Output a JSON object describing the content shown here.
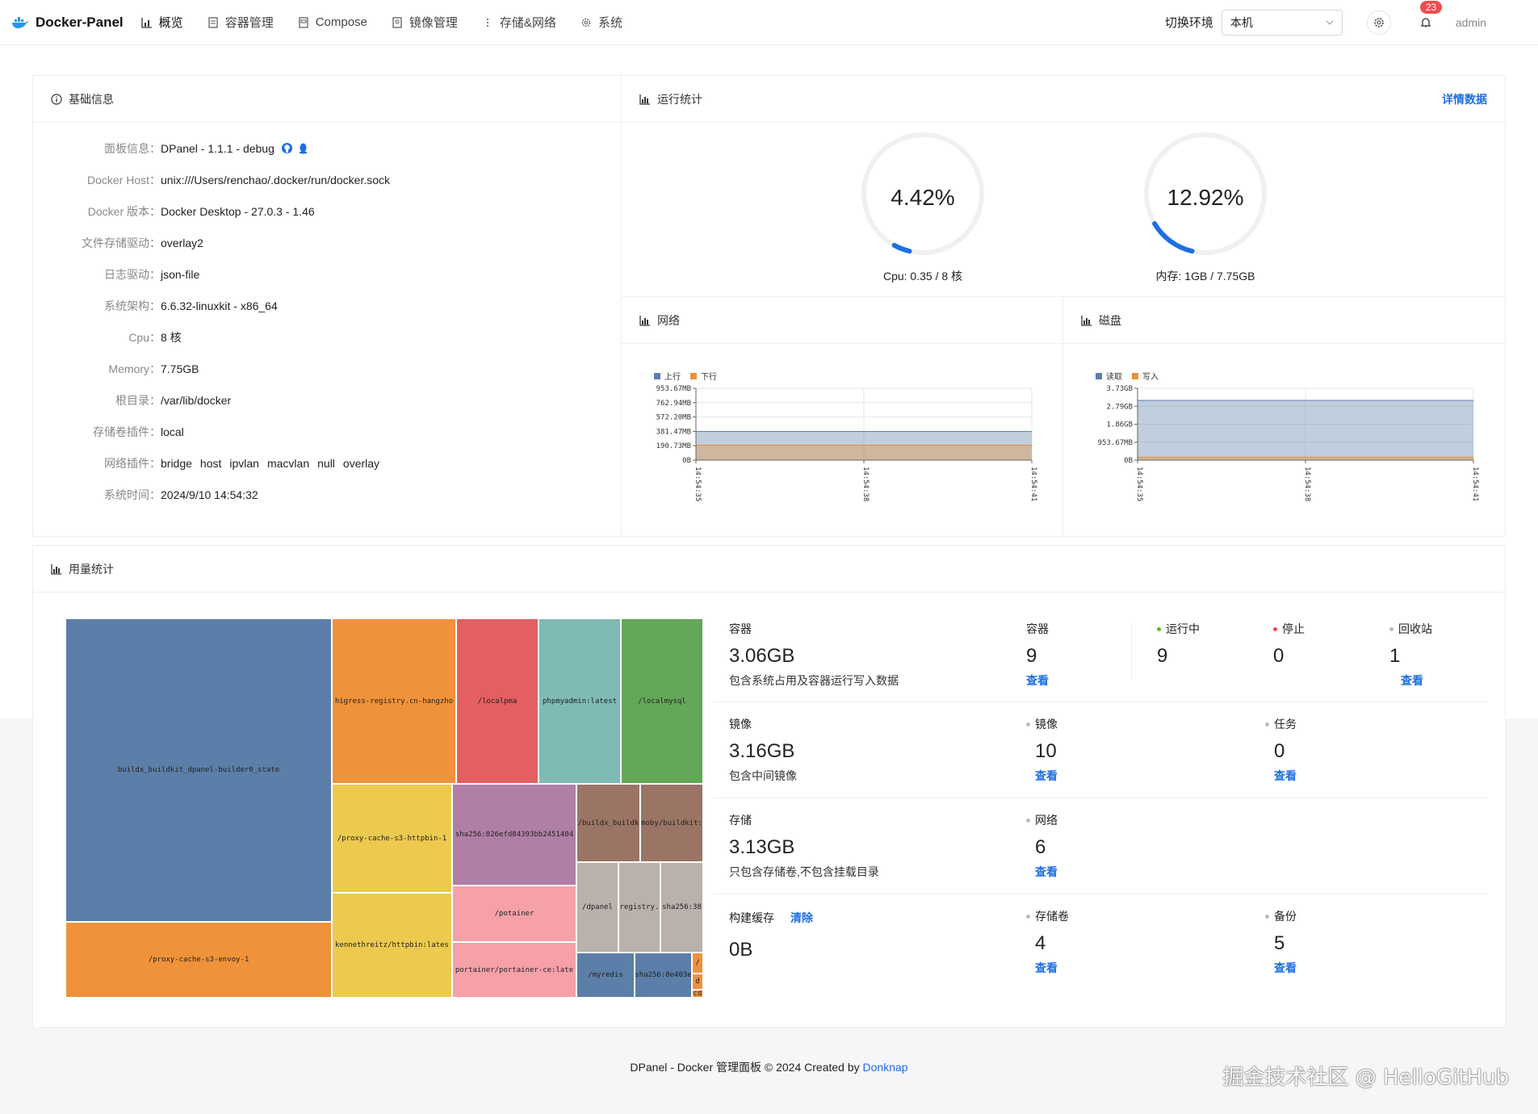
{
  "header": {
    "app_name": "Docker-Panel",
    "nav": [
      {
        "label": "概览",
        "icon": "chart-icon"
      },
      {
        "label": "容器管理",
        "icon": "container-icon"
      },
      {
        "label": "Compose",
        "icon": "compose-icon"
      },
      {
        "label": "镜像管理",
        "icon": "image-icon"
      },
      {
        "label": "存储&网络",
        "icon": "more-icon"
      },
      {
        "label": "系统",
        "icon": "gear-icon"
      }
    ],
    "env_label": "切换环境",
    "env_value": "本机",
    "notification_count": "23",
    "user": "admin"
  },
  "basic_info": {
    "title": "基础信息",
    "rows": [
      {
        "k": "面板信息：",
        "v": "DPanel - 1.1.1 - debug"
      },
      {
        "k": "Docker Host：",
        "v": "unix:///Users/renchao/.docker/run/docker.sock"
      },
      {
        "k": "Docker 版本：",
        "v": "Docker Desktop - 27.0.3 - 1.46"
      },
      {
        "k": "文件存储驱动：",
        "v": "overlay2"
      },
      {
        "k": "日志驱动：",
        "v": "json-file"
      },
      {
        "k": "系统架构：",
        "v": "6.6.32-linuxkit - x86_64"
      },
      {
        "k": "Cpu：",
        "v": "8 核"
      },
      {
        "k": "Memory：",
        "v": "7.75GB"
      },
      {
        "k": "根目录：",
        "v": "/var/lib/docker"
      },
      {
        "k": "存储卷插件：",
        "v": "local"
      },
      {
        "k": "网络插件：",
        "v": ""
      },
      {
        "k": "系统时间：",
        "v": "2024/9/10 14:54:32"
      }
    ],
    "network_plugins": [
      "bridge",
      "host",
      "ipvlan",
      "macvlan",
      "null",
      "overlay"
    ]
  },
  "runtime": {
    "title": "运行统计",
    "detail_link": "详情数据",
    "cpu": {
      "value": "4.42%",
      "label": "Cpu: 0.35 / 8 核",
      "fraction": 0.0442
    },
    "memory": {
      "value": "12.92%",
      "label": "内存: 1GB / 7.75GB",
      "fraction": 0.1292
    }
  },
  "network": {
    "title": "网络",
    "legend": [
      "上行",
      "下行"
    ],
    "colors": [
      "#5b7fa8",
      "#e8913a"
    ],
    "y_ticks": [
      "953.67MB",
      "762.94MB",
      "572.20MB",
      "381.47MB",
      "190.73MB",
      "0B"
    ],
    "x_ticks": [
      "14:54:35",
      "14:54:38",
      "14:54:41"
    ]
  },
  "disk": {
    "title": "磁盘",
    "legend": [
      "读取",
      "写入"
    ],
    "colors": [
      "#5b7fa8",
      "#e8913a"
    ],
    "y_ticks": [
      "3.73GB",
      "2.79GB",
      "1.86GB",
      "953.67MB",
      "0B"
    ],
    "x_ticks": [
      "14:54:35",
      "14:54:38",
      "14:54:41"
    ]
  },
  "chart_data": [
    {
      "type": "area",
      "x": [
        "14:54:35",
        "14:54:38",
        "14:54:41"
      ],
      "ylim": [
        0,
        953.67
      ],
      "series": [
        {
          "name": "上行",
          "values": [
            381,
            381,
            381
          ]
        },
        {
          "name": "下行",
          "values": [
            200,
            200,
            200
          ]
        }
      ]
    },
    {
      "type": "area",
      "x": [
        "14:54:35",
        "14:54:38",
        "14:54:41"
      ],
      "ylim": [
        0,
        3.73
      ],
      "series": [
        {
          "name": "读取",
          "values": [
            3.1,
            3.1,
            3.1
          ]
        },
        {
          "name": "写入",
          "values": [
            0.15,
            0.15,
            0.15
          ]
        }
      ]
    }
  ],
  "usage": {
    "title": "用量统计",
    "treemap": [
      {
        "label": "buildx_buildkit_dpanel-builder0_state",
        "color": "#5b7fa8"
      },
      {
        "label": "/proxy-cache-s3-envoy-1",
        "color": "#f0923a"
      },
      {
        "label": "higress-registry.cn-hangzho",
        "color": "#f0923a"
      },
      {
        "label": "/localpma",
        "color": "#e35f62"
      },
      {
        "label": "phpmyadmin:latest",
        "color": "#7fbab5"
      },
      {
        "label": "/localmysql",
        "color": "#63a758"
      },
      {
        "label": "/proxy-cache-s3-httpbin-1",
        "color": "#ecc94f"
      },
      {
        "label": "kennethreitz/httpbin:lates",
        "color": "#ecc94f"
      },
      {
        "label": "sha256:826efd84393bb2451404",
        "color": "#b07fa6"
      },
      {
        "label": "/potainer",
        "color": "#f6a0a8"
      },
      {
        "label": "portainer/portainer-ce:late",
        "color": "#f6a0a8"
      },
      {
        "label": "/buildx_buildk",
        "color": "#9a7566"
      },
      {
        "label": "moby/buildkit:",
        "color": "#9a7566"
      },
      {
        "label": "/dpanel",
        "color": "#bab0ac"
      },
      {
        "label": "registry.",
        "color": "#bab0ac"
      },
      {
        "label": "sha256:38",
        "color": "#bab0ac"
      },
      {
        "label": "/myredis",
        "color": "#5b7fa8"
      },
      {
        "label": "sha256:0e403e",
        "color": "#5b7fa8"
      },
      {
        "label": "/",
        "color": "#f0923a"
      },
      {
        "label": "d",
        "color": "#f0923a"
      },
      {
        "label": "cd",
        "color": "#f0923a"
      }
    ],
    "stats": {
      "container": {
        "title": "容器",
        "size": "3.06GB",
        "desc": "包含系统占用及容器运行写入数据"
      },
      "container_count": {
        "title": "容器",
        "value": "9",
        "link": "查看"
      },
      "running": {
        "title": "运行中",
        "value": "9",
        "color": "#52c41a"
      },
      "stopped": {
        "title": "停止",
        "value": "0",
        "color": "#f04c4c"
      },
      "recycle": {
        "title": "回收站",
        "value": "1",
        "link": "查看",
        "color": "#bbbbbb"
      },
      "image": {
        "title": "镜像",
        "size": "3.16GB",
        "desc": "包含中间镜像"
      },
      "image_count": {
        "title": "镜像",
        "value": "10",
        "link": "查看"
      },
      "task": {
        "title": "任务",
        "value": "0",
        "link": "查看"
      },
      "storage": {
        "title": "存储",
        "size": "3.13GB",
        "desc": "只包含存储卷,不包含挂载目录"
      },
      "network_count": {
        "title": "网络",
        "value": "6",
        "link": "查看"
      },
      "build_cache": {
        "title": "构建缓存",
        "clear": "清除",
        "size": "0B"
      },
      "volume_count": {
        "title": "存储卷",
        "value": "4",
        "link": "查看"
      },
      "backup": {
        "title": "备份",
        "value": "5",
        "link": "查看"
      }
    }
  },
  "footer": {
    "text": "DPanel - Docker 管理面板 © 2024 Created by ",
    "author": "Donknap"
  },
  "watermark": "掘金技术社区 @ HelloGitHub"
}
